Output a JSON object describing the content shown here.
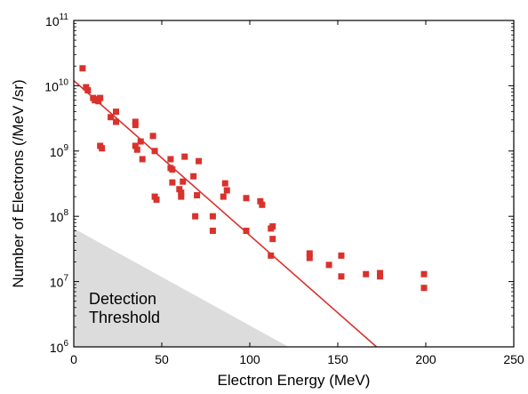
{
  "chart_data": {
    "type": "scatter",
    "xlabel": "Electron Energy (MeV)",
    "ylabel": "Number of Electrons (/MeV /sr)",
    "xlim": [
      0,
      250
    ],
    "ylim": [
      1000000,
      100000000000
    ],
    "y_scale": "log",
    "grid": false,
    "x_ticks": [
      0,
      50,
      100,
      150,
      200,
      250
    ],
    "x_tick_labels": [
      "0",
      "50",
      "100",
      "150",
      "200",
      "250"
    ],
    "y_ticks": [
      1000000,
      10000000,
      100000000,
      1000000000,
      10000000000,
      100000000000
    ],
    "y_tick_labels": [
      {
        "base": "10",
        "exp": "6"
      },
      {
        "base": "10",
        "exp": "7"
      },
      {
        "base": "10",
        "exp": "8"
      },
      {
        "base": "10",
        "exp": "9"
      },
      {
        "base": "10",
        "exp": "10"
      },
      {
        "base": "10",
        "exp": "11"
      }
    ],
    "colors": {
      "points": "#d9322c",
      "fit_line": "#d9322c",
      "threshold_fill": "#dcdcdc",
      "axis": "#000000"
    },
    "series": [
      {
        "points": [
          [
            5,
            18500000000
          ],
          [
            7,
            9500000000
          ],
          [
            8,
            8500000000
          ],
          [
            11,
            6500000000
          ],
          [
            12,
            6000000000
          ],
          [
            13,
            6200000000
          ],
          [
            14,
            5800000000
          ],
          [
            15,
            6500000000
          ],
          [
            15,
            1200000000
          ],
          [
            16,
            1100000000
          ],
          [
            21,
            3300000000
          ],
          [
            24,
            4000000000
          ],
          [
            24,
            2800000000
          ],
          [
            35,
            2800000000
          ],
          [
            35,
            2500000000
          ],
          [
            35,
            1200000000
          ],
          [
            36,
            1050000000
          ],
          [
            38,
            1400000000
          ],
          [
            39,
            750000000
          ],
          [
            45,
            1700000000
          ],
          [
            46,
            1000000000
          ],
          [
            46,
            200000000
          ],
          [
            47,
            180000000
          ],
          [
            55,
            750000000
          ],
          [
            55,
            550000000
          ],
          [
            56,
            520000000
          ],
          [
            56,
            330000000
          ],
          [
            60,
            260000000
          ],
          [
            61,
            230000000
          ],
          [
            61,
            200000000
          ],
          [
            62,
            340000000
          ],
          [
            63,
            820000000
          ],
          [
            68,
            410000000
          ],
          [
            69,
            100000000
          ],
          [
            70,
            210000000
          ],
          [
            71,
            700000000
          ],
          [
            79,
            100000000
          ],
          [
            79,
            60000000
          ],
          [
            85,
            200000000
          ],
          [
            86,
            320000000
          ],
          [
            87,
            250000000
          ],
          [
            98,
            190000000
          ],
          [
            98,
            60000000
          ],
          [
            106,
            170000000
          ],
          [
            107,
            150000000
          ],
          [
            112,
            65000000
          ],
          [
            113,
            70000000
          ],
          [
            113,
            45000000
          ],
          [
            112,
            25000000
          ],
          [
            134,
            27000000
          ],
          [
            134,
            23000000
          ],
          [
            145,
            18000000
          ],
          [
            152,
            25000000
          ],
          [
            152,
            12000000
          ],
          [
            166,
            13000000
          ],
          [
            174,
            13500000
          ],
          [
            174,
            12000000
          ],
          [
            199,
            13000000
          ],
          [
            199,
            8000000
          ]
        ]
      }
    ],
    "fit_line": {
      "x": [
        0,
        172
      ],
      "y": [
        12000000000,
        1000000
      ]
    },
    "threshold_region": {
      "x": [
        0,
        0,
        122,
        122
      ],
      "y": [
        65000000,
        1000000,
        1000000,
        1000000
      ]
    },
    "annotations": [
      "Detection",
      "Threshold"
    ]
  }
}
